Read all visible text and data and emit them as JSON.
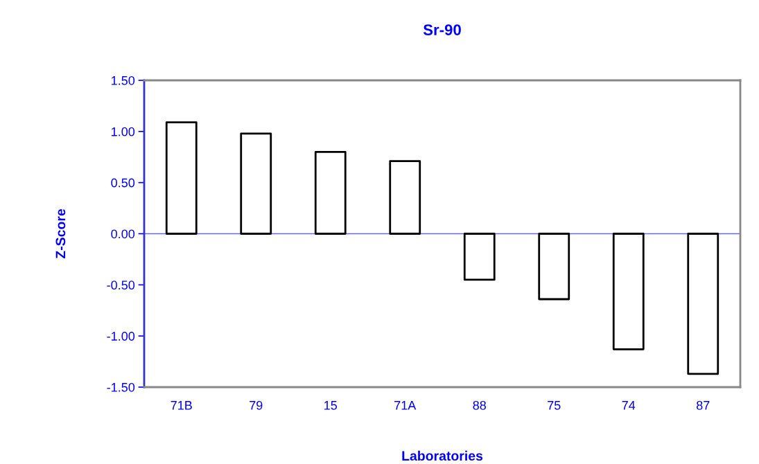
{
  "chart_data": {
    "type": "bar",
    "title": "Sr-90",
    "xlabel": "Laboratories",
    "ylabel": "Z-Score",
    "categories": [
      "71B",
      "79",
      "15",
      "71A",
      "88",
      "75",
      "74",
      "87"
    ],
    "values": [
      1.09,
      0.98,
      0.8,
      0.71,
      -0.45,
      -0.64,
      -1.13,
      -1.37
    ],
    "color": "#ffffff",
    "ylim": [
      -1.5,
      1.5
    ],
    "yticks": [
      {
        "value": -1.5,
        "label": "-1.50"
      },
      {
        "value": -1.0,
        "label": "-1.00"
      },
      {
        "value": -0.5,
        "label": "-0.50"
      },
      {
        "value": 0,
        "label": "0.00"
      },
      {
        "value": 0.5,
        "label": "0.50"
      },
      {
        "value": 1.0,
        "label": "1.00"
      },
      {
        "value": 1.5,
        "label": "1.50"
      }
    ],
    "ref_lines": [
      {
        "axis": "y",
        "value": 0,
        "color": "#6666ff"
      }
    ],
    "grid": false
  }
}
